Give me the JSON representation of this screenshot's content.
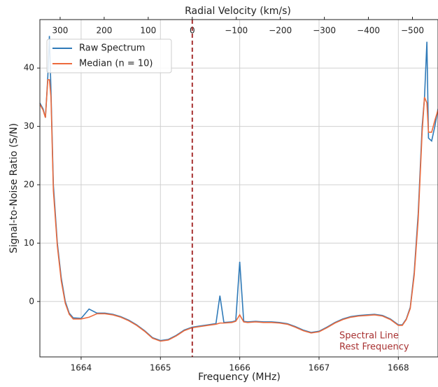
{
  "chart_data": {
    "type": "line",
    "xlabel": "Frequency (MHz)",
    "ylabel": "Signal-to-Noise Ratio (S/N)",
    "x2label": "Radial Velocity (km/s)",
    "x": [
      1663.48,
      1663.52,
      1663.55,
      1663.58,
      1663.6,
      1663.62,
      1663.65,
      1663.7,
      1663.75,
      1663.8,
      1663.85,
      1663.9,
      1664.0,
      1664.1,
      1664.2,
      1664.3,
      1664.4,
      1664.5,
      1664.6,
      1664.7,
      1664.8,
      1664.9,
      1665.0,
      1665.1,
      1665.2,
      1665.3,
      1665.4,
      1665.5,
      1665.6,
      1665.7,
      1665.75,
      1665.8,
      1665.9,
      1665.95,
      1666.0,
      1666.05,
      1666.1,
      1666.2,
      1666.3,
      1666.4,
      1666.5,
      1666.6,
      1666.7,
      1666.8,
      1666.9,
      1667.0,
      1667.1,
      1667.2,
      1667.3,
      1667.4,
      1667.5,
      1667.6,
      1667.7,
      1667.8,
      1667.9,
      1668.0,
      1668.05,
      1668.1,
      1668.15,
      1668.2,
      1668.25,
      1668.3,
      1668.33,
      1668.36,
      1668.38,
      1668.42,
      1668.46,
      1668.5
    ],
    "series": [
      {
        "name": "Raw Spectrum",
        "color": "#2f7ab8",
        "values": [
          34,
          33,
          31.5,
          38.5,
          45.5,
          36,
          20,
          10,
          4,
          0,
          -2,
          -2.8,
          -2.9,
          -1.3,
          -2,
          -2,
          -2.2,
          -2.6,
          -3.2,
          -4,
          -5,
          -6.2,
          -6.7,
          -6.5,
          -5.8,
          -4.9,
          -4.4,
          -4.2,
          -4,
          -3.8,
          1.0,
          -3.6,
          -3.5,
          -3.3,
          6.8,
          -3.4,
          -3.5,
          -3.4,
          -3.5,
          -3.5,
          -3.6,
          -3.8,
          -4.3,
          -4.9,
          -5.3,
          -5.1,
          -4.4,
          -3.6,
          -3,
          -2.6,
          -2.4,
          -2.3,
          -2.2,
          -2.4,
          -3,
          -4,
          -4,
          -3,
          -1,
          5,
          15,
          30,
          35,
          44.5,
          28,
          27.5,
          30,
          33
        ]
      },
      {
        "name": "Median (n = 10)",
        "color": "#ec6a3c",
        "values": [
          33.8,
          32.8,
          31.5,
          38,
          38,
          35,
          19,
          9.5,
          3.5,
          -0.3,
          -2.2,
          -3,
          -3,
          -2.7,
          -2.1,
          -2.1,
          -2.3,
          -2.7,
          -3.3,
          -4.1,
          -5.1,
          -6.3,
          -6.8,
          -6.6,
          -5.9,
          -5,
          -4.5,
          -4.3,
          -4.1,
          -3.9,
          -3.7,
          -3.7,
          -3.6,
          -3.4,
          -2.3,
          -3.5,
          -3.6,
          -3.5,
          -3.6,
          -3.6,
          -3.7,
          -3.9,
          -4.4,
          -5,
          -5.4,
          -5.2,
          -4.5,
          -3.7,
          -3.1,
          -2.7,
          -2.5,
          -2.4,
          -2.3,
          -2.5,
          -3.1,
          -4.1,
          -4.1,
          -3.1,
          -1.2,
          4.5,
          14,
          29,
          35,
          34,
          29,
          29,
          31,
          32.8
        ]
      }
    ],
    "xlim": [
      1663.48,
      1668.5
    ],
    "ylim": [
      -9.5,
      48.3
    ],
    "xticks": [
      1664,
      1665,
      1666,
      1667,
      1668
    ],
    "yticks": [
      0,
      10,
      20,
      30,
      40
    ],
    "x2lim": [
      346,
      -558
    ],
    "x2ticks": [
      300,
      200,
      100,
      0,
      {
        "value": -100,
        "label": "−100"
      },
      {
        "value": -200,
        "label": "−200"
      },
      {
        "value": -300,
        "label": "−300"
      },
      {
        "value": -400,
        "label": "−400"
      },
      {
        "value": -500,
        "label": "−500"
      }
    ],
    "rest_frequency": 1665.4018,
    "rest_line_color": "#a83232",
    "annotation": [
      "Spectral Line",
      "Rest Frequency"
    ],
    "grid": true,
    "legend": "upper left"
  }
}
